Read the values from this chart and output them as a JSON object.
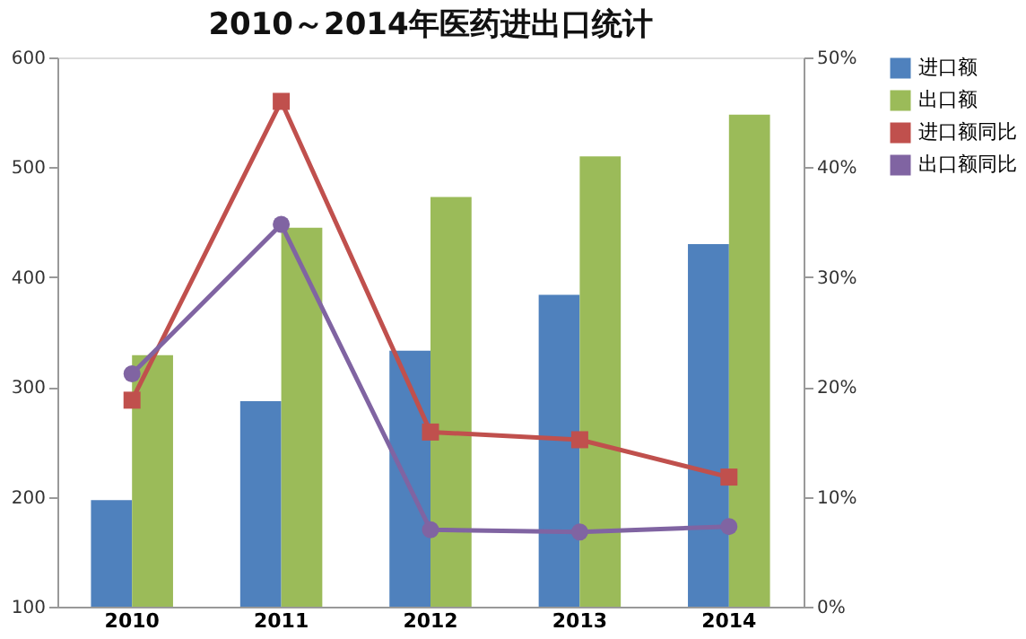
{
  "chart_data": {
    "type": "bar",
    "title": "2010～2014年医药进出口统计",
    "categories": [
      "2010",
      "2011",
      "2012",
      "2013",
      "2014"
    ],
    "series": [
      {
        "name": "进口额",
        "color": "#4f81bd",
        "values": [
          197,
          287,
          333,
          384,
          430
        ]
      },
      {
        "name": "出口额",
        "color": "#9bbb59",
        "values": [
          329,
          445,
          473,
          510,
          548
        ]
      },
      {
        "name": "进口额同比",
        "type": "line",
        "axis": "y2",
        "marker": "square",
        "color": "#c0504d",
        "values": [
          18.8,
          46.0,
          15.9,
          15.2,
          11.8
        ]
      },
      {
        "name": "出口额同比",
        "type": "line",
        "axis": "y2",
        "marker": "circle",
        "color": "#8064a2",
        "values": [
          21.2,
          34.8,
          7.0,
          6.8,
          7.3
        ]
      }
    ],
    "ylim": [
      100,
      600
    ],
    "yticks": [
      100,
      200,
      300,
      400,
      500,
      600
    ],
    "y2lim": [
      0,
      50
    ],
    "y2ticks": [
      {
        "value": 0,
        "label": "0%"
      },
      {
        "value": 10,
        "label": "10%"
      },
      {
        "value": 20,
        "label": "20%"
      },
      {
        "value": 30,
        "label": "30%"
      },
      {
        "value": 40,
        "label": "40%"
      },
      {
        "value": 50,
        "label": "50%"
      }
    ],
    "grid": false,
    "legend": "right"
  }
}
